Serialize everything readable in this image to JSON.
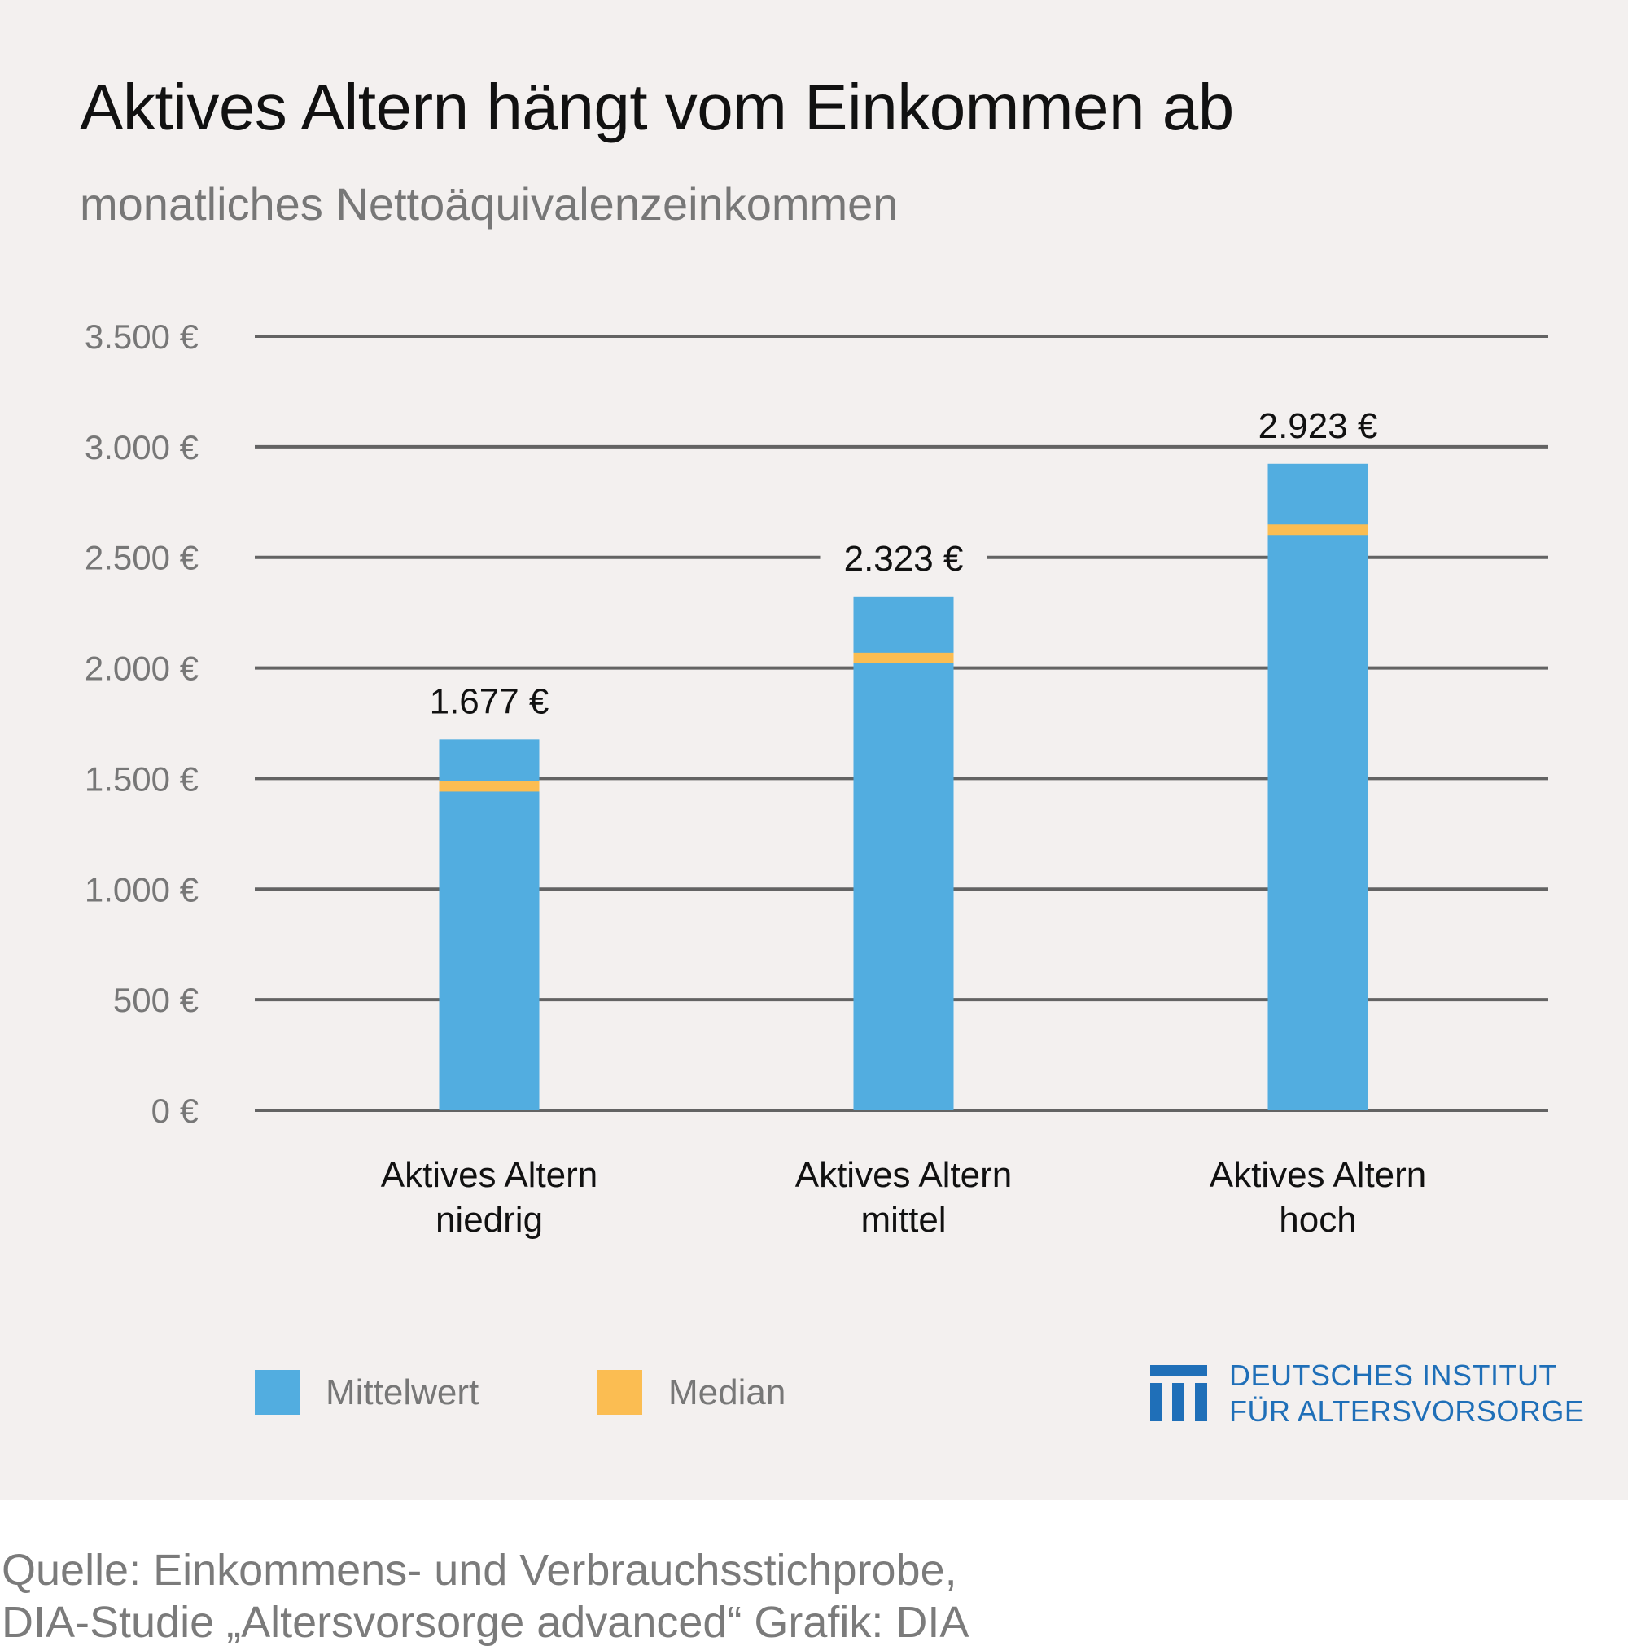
{
  "header": {
    "title": "Aktives Altern hängt vom Einkommen ab",
    "subtitle": "monatliches Nettoäquivalenzeinkommen"
  },
  "chart_data": {
    "type": "bar",
    "title": "Aktives Altern hängt vom Einkommen ab",
    "subtitle": "monatliches Nettoäquivalenzeinkommen",
    "categories": [
      [
        "Aktives Altern",
        "niedrig"
      ],
      [
        "Aktives Altern",
        "mittel"
      ],
      [
        "Aktives Altern",
        "hoch"
      ]
    ],
    "series": [
      {
        "name": "Mittelwert",
        "values": [
          1677,
          2323,
          2923
        ],
        "color": "#52ade0"
      },
      {
        "name": "Median",
        "values": [
          1465,
          2045,
          2625
        ],
        "color": "#fbbd52"
      }
    ],
    "data_labels": [
      "1.677 €",
      "2.323 €",
      "2.923 €"
    ],
    "y_ticks": [
      0,
      500,
      1000,
      1500,
      2000,
      2500,
      3000,
      3500
    ],
    "y_tick_labels": [
      "0 €",
      "500 €",
      "1.000 €",
      "1.500 €",
      "2.000 €",
      "2.500 €",
      "3.000 €",
      "3.500 €"
    ],
    "ylim": [
      0,
      3500
    ],
    "xlabel": "",
    "ylabel": "",
    "grid": true,
    "legend": "bottom-left",
    "colors": {
      "gridline": "#636363",
      "ticklabel": "#777777",
      "datalabel": "#111111",
      "category": "#111111"
    }
  },
  "legend": {
    "items": [
      {
        "label": "Mittelwert",
        "color": "#52ade0"
      },
      {
        "label": "Median",
        "color": "#fbbd52"
      }
    ]
  },
  "logo": {
    "line1": "DEUTSCHES INSTITUT",
    "line2": "FÜR ALTERSVORSORGE",
    "icon": "dia-columns-logo-icon",
    "color": "#1f6fb8"
  },
  "source": {
    "line1": "Quelle: Einkommens- und Verbrauchsstichprobe,",
    "line2": "DIA-Studie „Altersvorsorge advanced“  Grafik: DIA"
  }
}
